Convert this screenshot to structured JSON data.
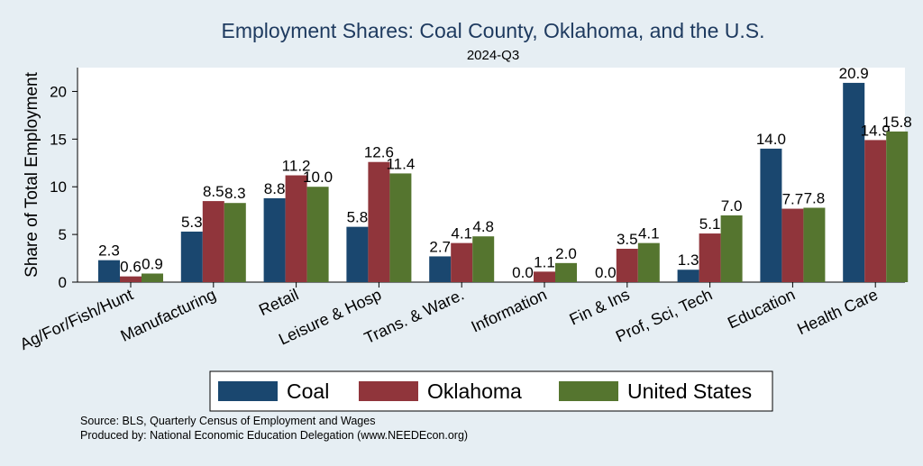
{
  "chart_data": {
    "type": "bar",
    "title": "Employment Shares: Coal County, Oklahoma, and the U.S.",
    "subtitle": "2024-Q3",
    "xlabel": "",
    "ylabel": "Share of Total Employment",
    "ylim": [
      0,
      22.5
    ],
    "yticks": [
      0,
      5,
      10,
      15,
      20
    ],
    "grid": false,
    "legend_position": "bottom",
    "categories": [
      "Ag/For/Fish/Hunt",
      "Manufacturing",
      "Retail",
      "Leisure & Hosp",
      "Trans. & Ware.",
      "Information",
      "Fin & Ins",
      "Prof, Sci, Tech",
      "Education",
      "Health Care"
    ],
    "series": [
      {
        "name": "Coal",
        "color": "#1a476f",
        "values": [
          2.3,
          5.3,
          8.8,
          5.8,
          2.7,
          0.0,
          0.0,
          1.3,
          14.0,
          20.9
        ],
        "labels": [
          "2.3",
          "5.3",
          "8.8",
          "5.8",
          "2.7",
          "0.0",
          "0.0",
          "1.3",
          "14.0",
          "20.9"
        ]
      },
      {
        "name": "Oklahoma",
        "color": "#90353b",
        "values": [
          0.6,
          8.5,
          11.2,
          12.6,
          4.1,
          1.1,
          3.5,
          5.1,
          7.7,
          14.9
        ],
        "labels": [
          "0.6",
          "8.5",
          "11.2",
          "12.6",
          "4.1",
          "1.1",
          "3.5",
          "5.1",
          "7.7",
          "14.9"
        ]
      },
      {
        "name": "United States",
        "color": "#55752f",
        "values": [
          0.9,
          8.3,
          10.0,
          11.4,
          4.8,
          2.0,
          4.1,
          7.0,
          7.8,
          15.8
        ],
        "labels": [
          "0.9",
          "8.3",
          "10.0",
          "11.4",
          "4.8",
          "2.0",
          "4.1",
          "7.0",
          "7.8",
          "15.8"
        ]
      }
    ],
    "notes": [
      "Source: BLS, Quarterly Census of Employment and Wages",
      "Produced by: National Economic Education Delegation (www.NEEDEcon.org)"
    ]
  }
}
